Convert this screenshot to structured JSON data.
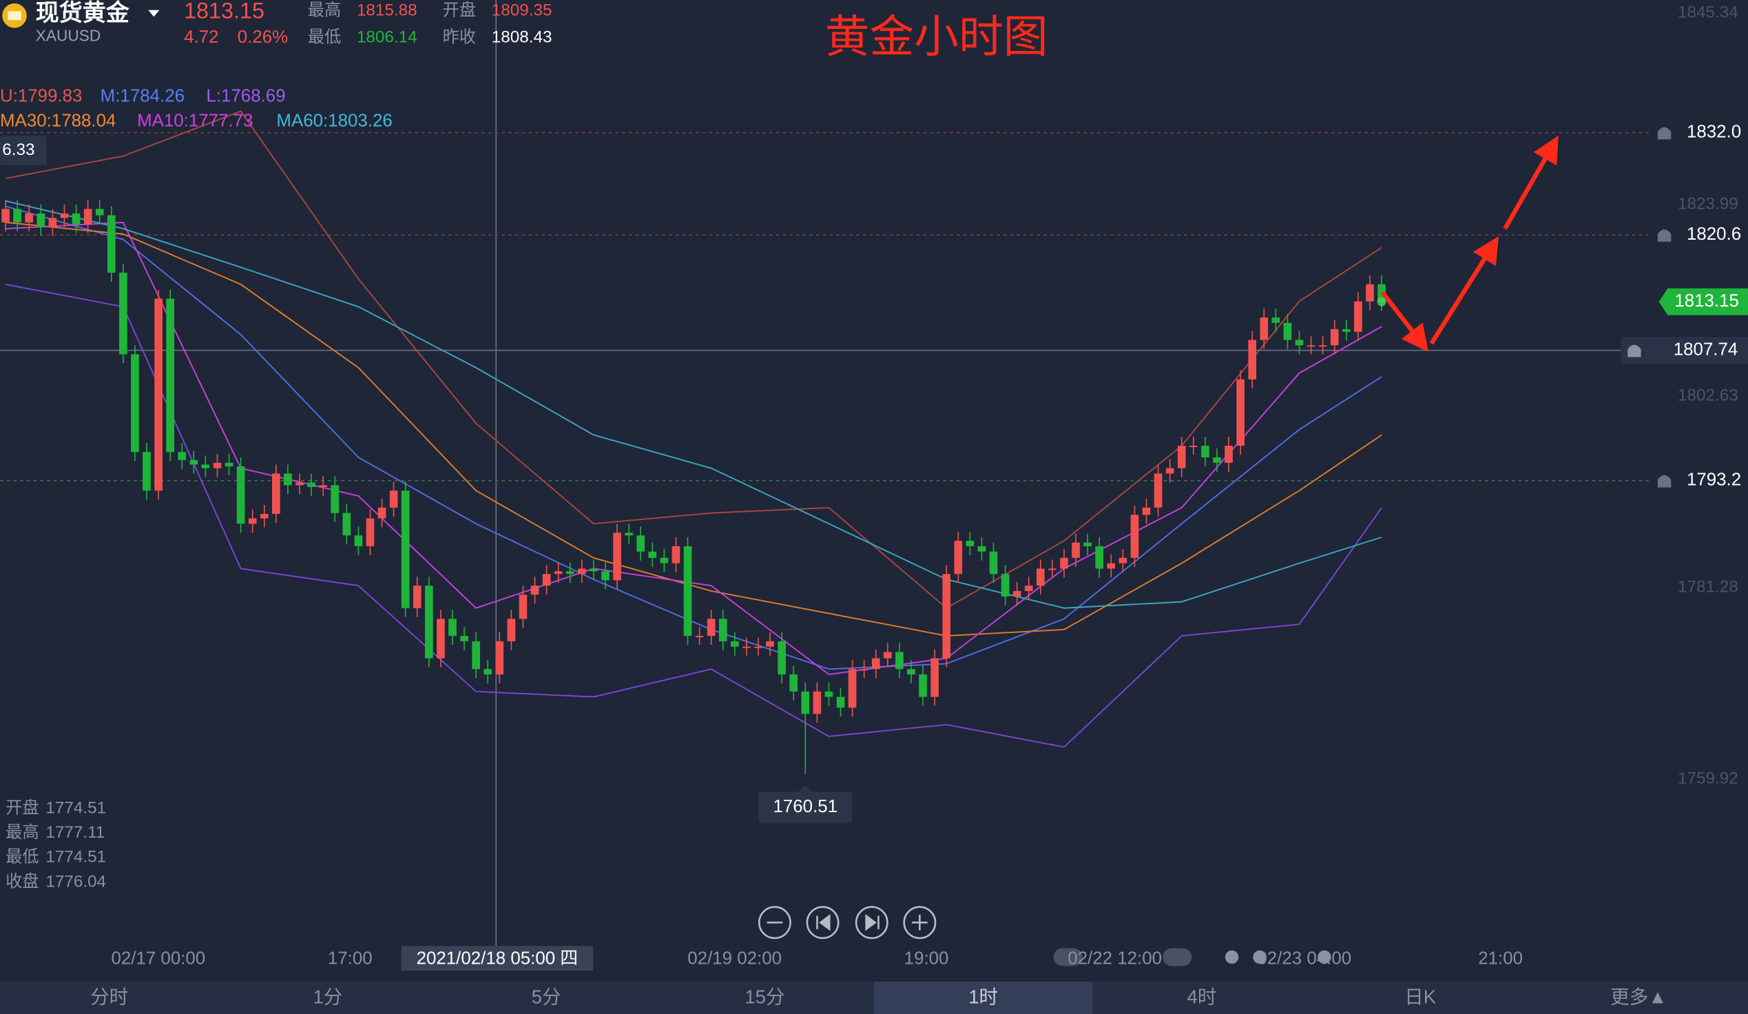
{
  "header": {
    "name": "现货黄金",
    "symbol": "XAUUSD",
    "price": "1813.15",
    "change": "4.72",
    "change_pct": "0.26%",
    "high_label": "最高",
    "high": "1815.88",
    "open_label": "开盘",
    "open": "1809.35",
    "low_label": "最低",
    "low": "1806.14",
    "prev_label": "昨收",
    "prev": "1808.43"
  },
  "indicators": [
    "U:1799.83",
    "M:1784.26",
    "L:1768.69",
    "MA30:1788.04",
    "MA10:1777.73",
    "MA60:1803.26"
  ],
  "info": [
    {
      "label": "开盘",
      "value": "1774.51"
    },
    {
      "label": "最高",
      "value": "1777.11"
    },
    {
      "label": "最低",
      "value": "1774.51"
    },
    {
      "label": "收盘",
      "value": "1776.04"
    }
  ],
  "tabs": [
    "分时",
    "1分",
    "5分",
    "15分",
    "1时",
    "4时",
    "日K",
    "更多▲"
  ],
  "active_tab": 4,
  "chart_data": {
    "type": "candlestick",
    "title": "黄金小时图",
    "ylim": [
      1741.7,
      1846.8
    ],
    "yticks": [
      1845.34,
      1823.99,
      1802.63,
      1781.28,
      1759.92
    ],
    "up_color": "#f0524f",
    "down_color": "#1fb53a",
    "open": [
      1822.0,
      1823.5,
      1822.0,
      1823.0,
      1821.5,
      1822.5,
      1823.0,
      1821.8,
      1823.5,
      1822.8,
      1816.4,
      1807.3,
      1796.4,
      1792.1,
      1813.5,
      1796.4,
      1795.5,
      1795.0,
      1794.6,
      1795.2,
      1794.8,
      1788.4,
      1789.0,
      1789.5,
      1794.0,
      1792.7,
      1793.0,
      1792.5,
      1792.7,
      1789.6,
      1787.1,
      1785.9,
      1789.0,
      1790.2,
      1792.1,
      1779.0,
      1781.5,
      1773.4,
      1777.8,
      1775.9,
      1775.3,
      1772.2,
      1771.6,
      1775.3,
      1777.8,
      1780.5,
      1781.5,
      1782.8,
      1783.1,
      1782.8,
      1783.4,
      1783.1,
      1782.1,
      1787.4,
      1787.1,
      1785.3,
      1784.6,
      1784.0,
      1785.9,
      1775.9,
      1775.9,
      1777.8,
      1775.3,
      1774.7,
      1774.7,
      1774.7,
      1775.3,
      1771.6,
      1769.7,
      1767.2,
      1769.7,
      1769.1,
      1767.9,
      1772.2,
      1772.2,
      1773.4,
      1774.1,
      1772.2,
      1771.6,
      1769.1,
      1773.4,
      1782.8,
      1786.5,
      1785.9,
      1785.3,
      1782.8,
      1780.3,
      1780.9,
      1781.5,
      1783.4,
      1783.4,
      1784.6,
      1786.3,
      1785.9,
      1783.4,
      1784.0,
      1784.6,
      1789.4,
      1790.2,
      1794.0,
      1794.6,
      1797.1,
      1797.1,
      1795.8,
      1795.2,
      1797.1,
      1804.5,
      1808.9,
      1811.4,
      1810.8,
      1808.9,
      1808.3,
      1808.3,
      1808.3,
      1810.1,
      1809.8,
      1813.2,
      1815.1
    ],
    "high": [
      1824.5,
      1824.5,
      1824.0,
      1824.0,
      1823.5,
      1824.0,
      1824.0,
      1824.5,
      1824.5,
      1823.8,
      1817.4,
      1808.3,
      1797.4,
      1814.5,
      1814.5,
      1797.4,
      1796.5,
      1796.0,
      1796.2,
      1796.2,
      1795.8,
      1790.0,
      1790.5,
      1795.0,
      1795.0,
      1794.0,
      1794.0,
      1793.7,
      1793.7,
      1790.6,
      1788.1,
      1790.0,
      1791.2,
      1793.1,
      1793.1,
      1782.5,
      1782.5,
      1778.8,
      1778.8,
      1776.9,
      1776.3,
      1773.2,
      1776.3,
      1778.8,
      1781.5,
      1782.5,
      1783.8,
      1784.1,
      1784.1,
      1784.4,
      1784.4,
      1784.1,
      1788.4,
      1788.4,
      1788.1,
      1786.3,
      1785.6,
      1786.9,
      1786.9,
      1776.9,
      1778.8,
      1778.8,
      1776.3,
      1775.7,
      1775.7,
      1776.3,
      1776.3,
      1772.6,
      1770.7,
      1770.7,
      1770.7,
      1770.1,
      1773.2,
      1773.2,
      1774.4,
      1775.1,
      1775.1,
      1773.2,
      1772.6,
      1774.4,
      1783.8,
      1787.5,
      1787.5,
      1786.9,
      1786.3,
      1783.8,
      1781.9,
      1782.5,
      1784.4,
      1784.4,
      1785.6,
      1787.3,
      1787.3,
      1786.9,
      1785.0,
      1785.6,
      1790.4,
      1791.2,
      1795.0,
      1795.6,
      1798.1,
      1798.1,
      1798.1,
      1796.8,
      1798.1,
      1805.5,
      1809.9,
      1812.4,
      1812.4,
      1811.8,
      1809.9,
      1809.3,
      1809.3,
      1811.1,
      1811.1,
      1814.2,
      1816.1,
      1816.1
    ],
    "low": [
      1821.0,
      1821.0,
      1821.0,
      1820.5,
      1820.5,
      1821.5,
      1820.8,
      1820.8,
      1821.8,
      1815.4,
      1806.3,
      1795.4,
      1791.1,
      1791.1,
      1795.4,
      1794.5,
      1794.0,
      1793.6,
      1793.6,
      1793.8,
      1787.4,
      1787.4,
      1788.0,
      1788.5,
      1791.7,
      1791.7,
      1791.5,
      1791.5,
      1788.6,
      1786.1,
      1784.9,
      1784.9,
      1788.0,
      1789.2,
      1778.0,
      1778.0,
      1772.4,
      1772.4,
      1774.9,
      1774.3,
      1771.2,
      1770.6,
      1770.6,
      1774.3,
      1776.8,
      1779.5,
      1780.5,
      1781.8,
      1781.8,
      1781.8,
      1782.1,
      1781.1,
      1781.1,
      1786.1,
      1784.3,
      1783.6,
      1783.0,
      1783.0,
      1774.9,
      1774.9,
      1774.9,
      1774.3,
      1773.7,
      1773.7,
      1773.7,
      1773.7,
      1770.6,
      1768.7,
      1760.51,
      1766.2,
      1768.1,
      1766.9,
      1766.9,
      1771.2,
      1771.2,
      1772.4,
      1771.2,
      1770.6,
      1768.1,
      1768.1,
      1772.4,
      1781.8,
      1784.9,
      1784.3,
      1781.8,
      1779.3,
      1779.3,
      1779.9,
      1780.5,
      1782.4,
      1782.4,
      1783.6,
      1784.9,
      1782.4,
      1782.4,
      1783.0,
      1783.6,
      1788.4,
      1789.2,
      1793.0,
      1793.6,
      1796.1,
      1794.8,
      1794.2,
      1794.2,
      1796.1,
      1803.5,
      1807.9,
      1809.8,
      1807.9,
      1807.3,
      1807.3,
      1807.3,
      1807.3,
      1808.8,
      1808.8,
      1812.2,
      1812.15
    ],
    "close": [
      1823.5,
      1822.0,
      1823.0,
      1821.5,
      1822.5,
      1823.0,
      1821.8,
      1823.5,
      1822.8,
      1816.4,
      1807.3,
      1796.4,
      1792.1,
      1813.5,
      1796.4,
      1795.5,
      1795.0,
      1794.6,
      1795.2,
      1794.8,
      1788.4,
      1789.0,
      1789.5,
      1794.0,
      1792.7,
      1793.0,
      1792.5,
      1792.7,
      1789.6,
      1787.1,
      1785.9,
      1789.0,
      1790.2,
      1792.1,
      1779.0,
      1781.5,
      1773.4,
      1777.8,
      1775.9,
      1775.3,
      1772.2,
      1771.6,
      1775.3,
      1777.8,
      1780.5,
      1781.5,
      1782.8,
      1783.1,
      1782.8,
      1783.4,
      1783.1,
      1782.1,
      1787.4,
      1787.1,
      1785.3,
      1784.6,
      1784.0,
      1785.9,
      1775.9,
      1775.9,
      1777.8,
      1775.3,
      1774.7,
      1774.7,
      1774.7,
      1775.3,
      1771.6,
      1769.7,
      1767.2,
      1769.7,
      1769.1,
      1767.9,
      1772.2,
      1772.2,
      1773.4,
      1774.1,
      1772.2,
      1771.6,
      1769.1,
      1773.4,
      1782.8,
      1786.5,
      1785.9,
      1785.3,
      1782.8,
      1780.3,
      1780.9,
      1781.5,
      1783.4,
      1783.4,
      1784.6,
      1786.3,
      1785.9,
      1783.4,
      1784.0,
      1784.6,
      1789.4,
      1790.2,
      1794.0,
      1794.6,
      1797.1,
      1797.1,
      1795.8,
      1795.2,
      1797.1,
      1804.5,
      1808.9,
      1811.4,
      1810.8,
      1808.9,
      1808.3,
      1808.3,
      1808.3,
      1810.1,
      1809.8,
      1813.2,
      1815.1,
      1813.15
    ],
    "lines": {
      "x": [
        0,
        10,
        20,
        30,
        40,
        50,
        60,
        70,
        80,
        90,
        100,
        110,
        117
      ],
      "series": [
        {
          "color": "#a8473d",
          "values": [
            1826.9,
            1829.4,
            1834.4,
            1815.7,
            1799.6,
            1788.4,
            1789.6,
            1790.2,
            1779.0,
            1786.5,
            1797.1,
            1813.2,
            1819.2
          ]
        },
        {
          "color": "#4d6fe0",
          "values": [
            1823.8,
            1820.1,
            1809.5,
            1795.8,
            1788.4,
            1782.2,
            1776.6,
            1772.2,
            1772.8,
            1777.8,
            1788.4,
            1798.9,
            1804.8
          ]
        },
        {
          "color": "#7b45d6",
          "values": [
            1815.1,
            1812.6,
            1783.4,
            1781.5,
            1769.7,
            1769.1,
            1772.2,
            1764.7,
            1766.0,
            1763.5,
            1775.9,
            1777.2,
            1790.2
          ]
        },
        {
          "color": "#e07a2a",
          "values": [
            1822.0,
            1820.7,
            1815.1,
            1805.8,
            1792.1,
            1784.6,
            1780.9,
            1778.4,
            1775.9,
            1776.6,
            1784.0,
            1792.1,
            1798.3
          ]
        },
        {
          "color": "#c83fdc",
          "values": [
            1821.3,
            1822.0,
            1794.6,
            1791.5,
            1779.0,
            1783.4,
            1781.5,
            1771.6,
            1773.4,
            1783.4,
            1790.2,
            1805.2,
            1810.4
          ]
        },
        {
          "color": "#3aa6c0",
          "values": [
            1824.4,
            1821.3,
            1817.0,
            1812.6,
            1805.8,
            1798.3,
            1794.6,
            1788.4,
            1782.2,
            1779.0,
            1779.7,
            1784.0,
            1786.9
          ]
        }
      ]
    },
    "alerts": [
      {
        "value": 1832.0,
        "label": "1832.0",
        "color": "#7a3d3d"
      },
      {
        "value": 1820.6,
        "label": "1820.6",
        "color": "#7a3d3d"
      },
      {
        "value": 1793.2,
        "label": "1793.2",
        "color": "#3f6e4c"
      }
    ],
    "crosshair": 1807.74,
    "max_marker": "6.33",
    "xlabels": [
      "02/17 00:00",
      "17:00",
      "2021/02/18 05:00 四",
      "02/19 02:00",
      "19:00",
      "02/22 12:00",
      "02/23 04:00",
      "21:00"
    ]
  }
}
